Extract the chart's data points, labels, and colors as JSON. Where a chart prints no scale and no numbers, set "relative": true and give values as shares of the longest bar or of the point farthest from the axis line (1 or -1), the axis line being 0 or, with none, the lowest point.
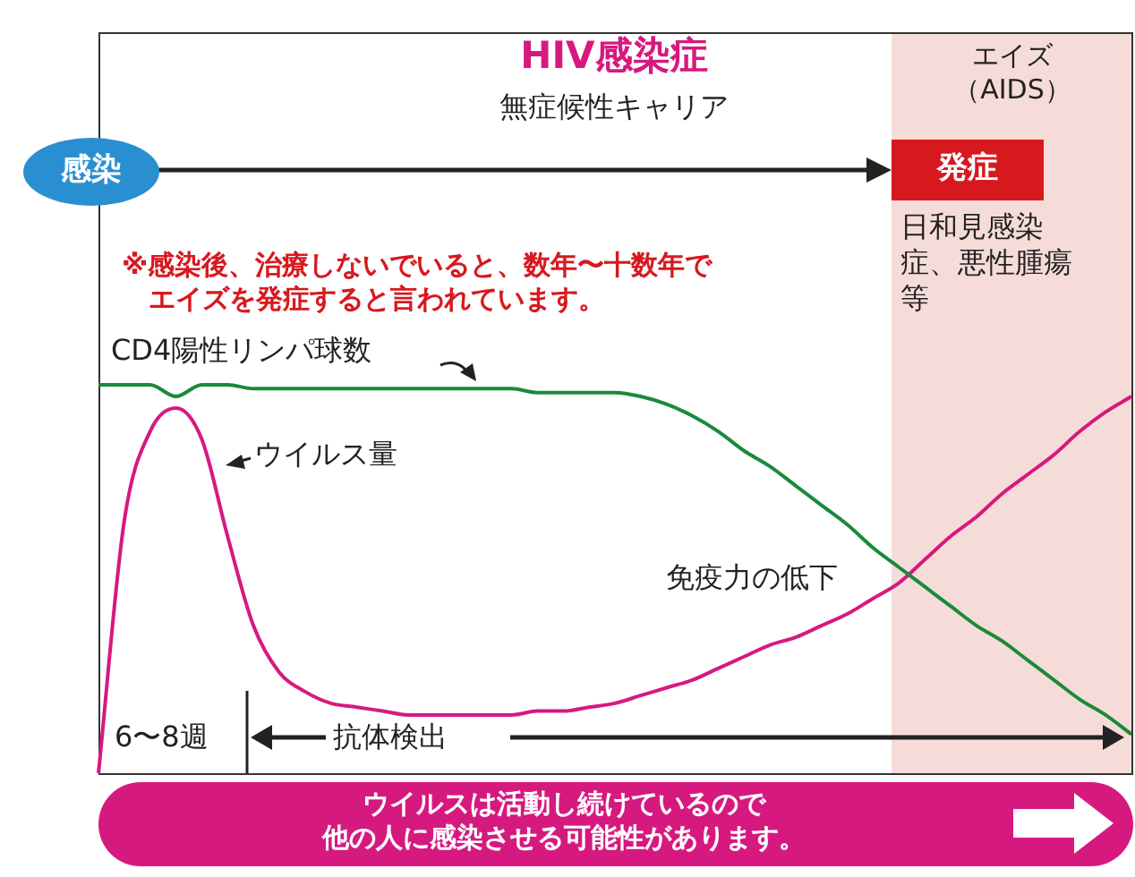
{
  "chart_data": {
    "type": "line",
    "title": "HIV感染症",
    "relative": true,
    "tick_labels": false,
    "categories": [
      null,
      null,
      null,
      null,
      null,
      null,
      null,
      null,
      null,
      null,
      null,
      null,
      null,
      null,
      null,
      null,
      null,
      null,
      null,
      null,
      null,
      null,
      null,
      null,
      null,
      null,
      null,
      null,
      null,
      null,
      null,
      null,
      null,
      null,
      null,
      null,
      null,
      null,
      null,
      null,
      null
    ],
    "series": [
      {
        "name": "CD4陽性リンパ球数",
        "color": "#1a8a3c",
        "values": [
          1,
          1,
          1,
          0.97,
          1,
          1,
          0.99,
          0.99,
          0.99,
          0.99,
          0.99,
          0.99,
          0.99,
          0.99,
          0.99,
          0.99,
          0.99,
          0.98,
          0.98,
          0.98,
          0.98,
          0.97,
          0.95,
          0.92,
          0.88,
          0.83,
          0.79,
          0.74,
          0.69,
          0.64,
          0.58,
          0.53,
          0.48,
          0.43,
          0.38,
          0.34,
          0.29,
          0.24,
          0.19,
          0.15,
          0.1
        ]
      },
      {
        "name": "ウイルス量",
        "color": "#d6197f",
        "values": [
          0,
          0.65,
          0.88,
          0.94,
          0.86,
          0.61,
          0.38,
          0.26,
          0.21,
          0.18,
          0.17,
          0.16,
          0.15,
          0.15,
          0.15,
          0.15,
          0.15,
          0.16,
          0.16,
          0.17,
          0.18,
          0.2,
          0.22,
          0.24,
          0.27,
          0.3,
          0.33,
          0.35,
          0.38,
          0.41,
          0.45,
          0.49,
          0.55,
          0.61,
          0.66,
          0.72,
          0.77,
          0.82,
          0.88,
          0.93,
          0.97
        ]
      }
    ],
    "annotations": [
      "エイズ（AIDS）",
      "無症候性キャリア",
      "感染",
      "発症",
      "日和見感染症、悪性腫瘍等",
      "※感染後、治療しないでいると、数年〜十数年でエイズを発症すると言われています。",
      "免疫力の低下",
      "6〜8週",
      "抗体検出",
      "ウイルスは活動し続けているので",
      "他の人に感染させる可能性があります。"
    ]
  }
}
